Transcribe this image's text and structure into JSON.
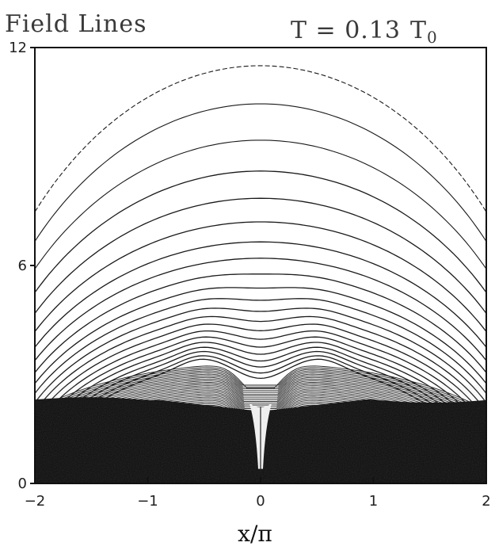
{
  "chart_data": {
    "type": "contour",
    "title": "Field Lines",
    "annotation": {
      "prefix": "T = 0.13",
      "unit_main": "T",
      "unit_sub": "0"
    },
    "xlabel": "x/π",
    "ylabel": "",
    "xlim": [
      -2,
      2
    ],
    "ylim": [
      0,
      12
    ],
    "x_ticks": [
      {
        "value": -2,
        "label": "−2"
      },
      {
        "value": -1,
        "label": "−1"
      },
      {
        "value": 0,
        "label": "0"
      },
      {
        "value": 1,
        "label": "1"
      },
      {
        "value": 2,
        "label": "2"
      }
    ],
    "y_ticks": [
      {
        "value": 0,
        "label": "0"
      },
      {
        "value": 6,
        "label": "6"
      },
      {
        "value": 12,
        "label": "12"
      }
    ],
    "grid": false,
    "legend": "none",
    "colors": {
      "lines": "#1a1a1a",
      "dense_region": "#0a0a0a",
      "background": "#ffffff"
    },
    "field_lines": {
      "top_apex_y": 11.5,
      "apex_levels": [
        11.5,
        10.45,
        9.45,
        8.6,
        7.85,
        7.2,
        6.65,
        6.2,
        5.8,
        5.45,
        5.15,
        4.88,
        4.64,
        4.42,
        4.22,
        4.04,
        3.88,
        3.73,
        3.6,
        3.47,
        3.36
      ],
      "dense_region_top_y": 2.3,
      "x_point_y": 3.35
    }
  }
}
